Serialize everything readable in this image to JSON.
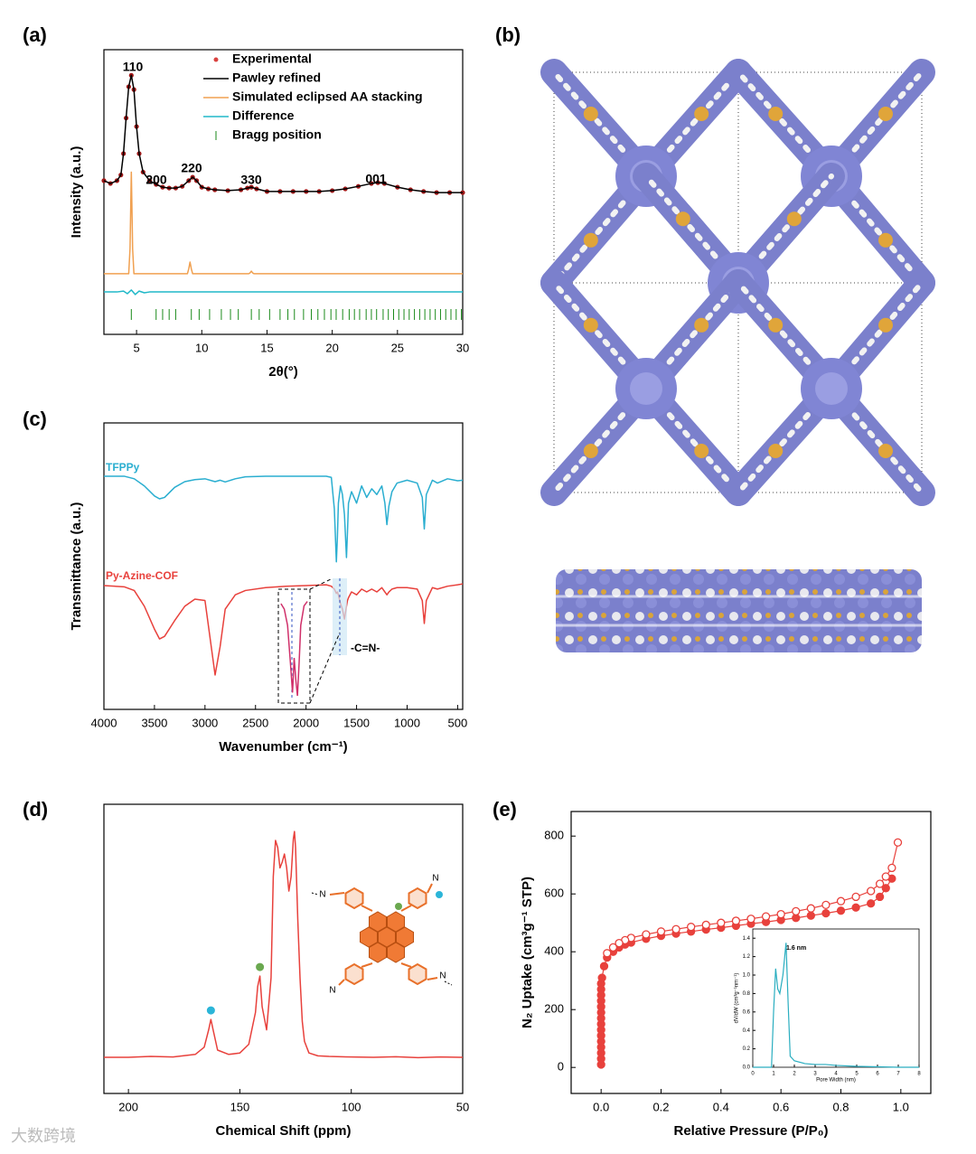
{
  "chart_data": [
    {
      "panel_label": "(a)",
      "type": "line",
      "xlabel": "2θ(°)",
      "ylabel": "Intensity (a.u.)",
      "xlim": [
        2.5,
        30
      ],
      "xticks": [
        5,
        10,
        15,
        20,
        25,
        30
      ],
      "ylim": [
        0,
        100
      ],
      "legend": "top-right",
      "x": [
        2.5,
        3,
        3.5,
        3.8,
        4.0,
        4.2,
        4.4,
        4.6,
        4.8,
        5.0,
        5.2,
        5.5,
        6,
        6.5,
        7,
        7.5,
        8,
        8.5,
        9,
        9.3,
        9.6,
        10,
        10.5,
        11,
        12,
        13,
        13.5,
        13.8,
        14.2,
        15,
        16,
        17,
        18,
        19,
        20,
        21,
        22,
        23,
        23.5,
        24,
        25,
        26,
        27,
        28,
        29,
        30
      ],
      "series": [
        {
          "name": "Experimental",
          "color": "#d9423f",
          "marker": "dot",
          "values": [
            54,
            53,
            54,
            56,
            63.5,
            76,
            87,
            91,
            86,
            73,
            63.5,
            57,
            54,
            52.7,
            51.7,
            51.4,
            51.4,
            52,
            54,
            55.2,
            54,
            51.7,
            51.1,
            50.8,
            50.5,
            50.8,
            51.4,
            51.7,
            51.1,
            50.2,
            50.2,
            50.2,
            50.2,
            50.2,
            50.5,
            51.1,
            52,
            53,
            53.3,
            53,
            51.7,
            50.8,
            50.2,
            49.8,
            49.8,
            49.8
          ]
        },
        {
          "name": "Pawley refined",
          "color": "#000000",
          "marker": "line",
          "values": [
            54,
            53,
            54,
            56,
            63.5,
            76,
            87,
            91,
            86,
            73,
            63.5,
            57,
            54,
            52.7,
            51.7,
            51.4,
            51.4,
            52,
            54,
            55.2,
            54,
            51.7,
            51.1,
            50.8,
            50.5,
            50.8,
            51.4,
            51.7,
            51.1,
            50.2,
            50.2,
            50.2,
            50.2,
            50.2,
            50.5,
            51.1,
            52,
            53,
            53.3,
            53,
            51.7,
            50.8,
            50.2,
            49.8,
            49.8,
            49.8
          ]
        },
        {
          "name": "Simulated eclipsed AA stacking",
          "color": "#f0a050",
          "marker": "line",
          "x": [
            2.5,
            4.4,
            4.5,
            4.6,
            4.7,
            4.8,
            8.9,
            9.0,
            9.1,
            9.2,
            9.3,
            13.6,
            13.7,
            13.8,
            13.9,
            14.0,
            30
          ],
          "values": [
            21.3,
            21.3,
            30,
            57,
            30,
            21.3,
            21.3,
            23,
            25.4,
            23,
            21.3,
            21.3,
            21.6,
            22.2,
            21.6,
            21.3,
            21.3
          ]
        },
        {
          "name": "Difference",
          "color": "#20b8c8",
          "marker": "line",
          "x": [
            2.5,
            3.5,
            4.0,
            4.3,
            4.6,
            4.9,
            5.2,
            5.6,
            6.0,
            7,
            30
          ],
          "values": [
            14.9,
            14.9,
            15.2,
            14.3,
            15.6,
            14.0,
            15.2,
            14.6,
            14.9,
            14.9,
            14.9
          ]
        },
        {
          "name": "Bragg position",
          "color": "#1a8a1a",
          "marker": "tick",
          "x": [
            4.6,
            6.5,
            7.0,
            7.5,
            8.0,
            9.2,
            9.8,
            10.6,
            11.5,
            12.2,
            12.8,
            13.8,
            14.4,
            15.2,
            16.0,
            16.6,
            17.1,
            17.8,
            18.4,
            18.9,
            19.4,
            19.9,
            20.3,
            20.8,
            21.3,
            21.7,
            22.1,
            22.6,
            23.0,
            23.4,
            23.9,
            24.3,
            24.7,
            25.1,
            25.5,
            25.9,
            26.3,
            26.7,
            27.1,
            27.5,
            27.9,
            28.3,
            28.7,
            29.1,
            29.5,
            29.9
          ]
        }
      ],
      "annotations": [
        "110",
        "200",
        "220",
        "330",
        "001"
      ]
    },
    {
      "panel_label": "(c)",
      "type": "line",
      "xlabel": "Wavenumber (cm⁻¹)",
      "ylabel": "Transmittance (a.u.)",
      "xlim": [
        4000,
        450
      ],
      "xticks": [
        4000,
        3500,
        3000,
        2500,
        2000,
        1500,
        1000,
        500
      ],
      "ylim": [
        0,
        100
      ],
      "legend": "inline",
      "x": [
        4000,
        3800,
        3700,
        3600,
        3500,
        3450,
        3400,
        3300,
        3200,
        3100,
        3000,
        2900,
        2850,
        2800,
        2700,
        2600,
        2400,
        2200,
        2000,
        1800,
        1750,
        1720,
        1700,
        1690,
        1680,
        1660,
        1640,
        1620,
        1600,
        1590,
        1580,
        1550,
        1500,
        1450,
        1400,
        1350,
        1300,
        1250,
        1220,
        1200,
        1180,
        1150,
        1100,
        1000,
        900,
        850,
        830,
        810,
        750,
        700,
        600,
        500,
        450
      ],
      "series": [
        {
          "name": "TFPPy",
          "color": "#2aaed0",
          "marker": "line",
          "values": [
            81.4,
            81.4,
            80.5,
            78,
            74.5,
            73.5,
            74,
            77.5,
            79.5,
            80.2,
            80.5,
            79.5,
            80,
            79.4,
            80.5,
            81.2,
            81.4,
            81.4,
            81.4,
            81.4,
            81,
            70,
            51.5,
            60,
            72,
            78,
            75,
            68,
            53,
            62,
            72,
            76,
            72,
            78,
            74,
            77,
            75,
            78,
            72,
            64.5,
            71,
            76,
            79,
            80,
            79,
            74,
            63,
            75,
            80,
            79,
            80.5,
            79.8,
            80
          ]
        },
        {
          "name": "Py-Azine-COF",
          "color": "#e8413c",
          "marker": "line",
          "values": [
            43.2,
            42.8,
            41.5,
            36,
            28,
            24.6,
            25.5,
            31,
            36,
            38.5,
            38,
            12,
            22,
            35,
            40,
            41.5,
            42.5,
            43,
            43.2,
            43.5,
            43,
            42,
            40.5,
            41,
            40,
            37,
            35,
            31.5,
            36,
            38,
            39,
            41,
            40,
            42,
            41,
            42,
            41,
            42.5,
            41,
            40,
            41,
            42,
            42.5,
            42.5,
            42,
            38,
            30,
            38,
            42.5,
            42,
            43,
            43.5,
            43.8
          ]
        }
      ],
      "annotation": "-C=N-",
      "inset": {
        "xlim": [
          1725,
          1555
        ],
        "ylim": [
          0,
          100
        ],
        "color": "#d0306a",
        "x": [
          1720,
          1700,
          1680,
          1660,
          1650,
          1640,
          1630,
          1620,
          1610,
          1600,
          1580,
          1560
        ],
        "values": [
          90,
          85,
          70,
          30,
          8,
          40,
          20,
          5,
          35,
          70,
          88,
          92
        ]
      }
    },
    {
      "panel_label": "(d)",
      "type": "line",
      "xlabel": "Chemical Shift (ppm)",
      "xlim": [
        211,
        50
      ],
      "xticks": [
        200,
        150,
        100,
        50
      ],
      "ylim": [
        0,
        100
      ],
      "x": [
        211,
        200,
        190,
        180,
        170,
        166,
        164,
        163,
        162,
        160,
        155,
        150,
        146,
        143,
        142,
        141,
        140,
        138,
        136,
        135,
        134,
        133,
        132,
        131,
        130,
        129,
        128,
        127,
        126,
        125.5,
        125,
        124,
        123,
        122,
        121,
        119,
        115,
        110,
        100,
        90,
        80,
        70,
        60,
        50
      ],
      "series": [
        {
          "color": "#e8413c",
          "marker": "line",
          "values": [
            12.5,
            12.5,
            12.8,
            12.6,
            13.5,
            16,
            22,
            25.6,
            22,
            15,
            13.5,
            14,
            17,
            28,
            37,
            40.6,
            30,
            22,
            40,
            75,
            87.5,
            85,
            78,
            80,
            82.8,
            78,
            70,
            75,
            88,
            90.6,
            85,
            60,
            40,
            25,
            18,
            14,
            13,
            12.8,
            12.6,
            12.5,
            12.7,
            12.4,
            12.6,
            12.5
          ]
        }
      ],
      "peak_markers": [
        {
          "x": 163,
          "color": "#2bb5d8"
        },
        {
          "x": 141,
          "color": "#6aa84f"
        }
      ],
      "structure_atoms": [
        "N",
        "N",
        "N",
        "N"
      ]
    },
    {
      "panel_label": "(e)",
      "type": "scatter",
      "xlabel": "Relative Pressure (P/P₀)",
      "ylabel": "N₂ Uptake (cm³g⁻¹ STP)",
      "xlim": [
        -0.1,
        1.1
      ],
      "xticks": [
        {
          "value": 0,
          "label": "0.0"
        },
        0.2,
        0.4,
        0.6,
        0.8,
        {
          "value": 1,
          "label": "1.0"
        }
      ],
      "ylim": [
        -90,
        885
      ],
      "yticks": [
        0,
        200,
        400,
        600,
        800
      ],
      "series": [
        {
          "color": "#e8413c",
          "marker": "filled",
          "x": [
            0,
            0,
            0,
            0,
            0,
            0,
            0,
            0,
            0,
            0,
            0,
            0,
            0,
            0,
            0,
            0.003,
            0.01,
            0.02,
            0.04,
            0.06,
            0.08,
            0.1,
            0.15,
            0.2,
            0.25,
            0.3,
            0.35,
            0.4,
            0.45,
            0.5,
            0.55,
            0.6,
            0.65,
            0.7,
            0.75,
            0.8,
            0.85,
            0.9,
            0.93,
            0.95,
            0.97
          ],
          "values": [
            10,
            30,
            50,
            70,
            90,
            110,
            130,
            150,
            170,
            190,
            210,
            230,
            250,
            270,
            290,
            310,
            350,
            380,
            400,
            415,
            425,
            432,
            445,
            455,
            463,
            470,
            477,
            483,
            490,
            497,
            503,
            510,
            517,
            525,
            533,
            542,
            553,
            567,
            590,
            620,
            653
          ]
        },
        {
          "color": "#e8413c",
          "marker": "open",
          "x": [
            0.99,
            0.97,
            0.95,
            0.93,
            0.9,
            0.85,
            0.8,
            0.75,
            0.7,
            0.65,
            0.6,
            0.55,
            0.5,
            0.45,
            0.4,
            0.35,
            0.3,
            0.25,
            0.2,
            0.15,
            0.1,
            0.08,
            0.06,
            0.04,
            0.02
          ],
          "values": [
            778,
            690,
            660,
            635,
            610,
            590,
            575,
            562,
            550,
            540,
            530,
            522,
            514,
            507,
            500,
            493,
            486,
            478,
            470,
            460,
            448,
            440,
            430,
            415,
            395
          ]
        }
      ],
      "inset": {
        "xlabel": "Pore Width (nm)",
        "ylabel": "dV/dW (cm³g⁻¹nm⁻¹)",
        "annotation": "1.6 nm",
        "color": "#2aaec0",
        "xlim": [
          0,
          8
        ],
        "xticks": [
          0,
          1,
          2,
          3,
          4,
          5,
          6,
          7,
          8
        ],
        "ylim": [
          0,
          1.5
        ],
        "yticks": [
          {
            "value": 0,
            "label": "0.0"
          },
          0.2,
          0.4,
          0.6,
          0.8,
          {
            "value": 1,
            "label": "1.0"
          },
          1.2,
          1.4
        ],
        "x": [
          0,
          0.9,
          1.0,
          1.1,
          1.2,
          1.3,
          1.45,
          1.6,
          1.7,
          1.8,
          2.0,
          2.5,
          3,
          3.5,
          4,
          5,
          6,
          7,
          8
        ],
        "values": [
          0,
          0,
          0.6,
          1.07,
          0.85,
          0.8,
          1.0,
          1.35,
          0.7,
          0.12,
          0.07,
          0.04,
          0.03,
          0.03,
          0.02,
          0.01,
          0.005,
          0,
          0
        ]
      }
    }
  ],
  "structure_panel": {
    "panel_label": "(b)"
  },
  "watermark": "大数跨境"
}
